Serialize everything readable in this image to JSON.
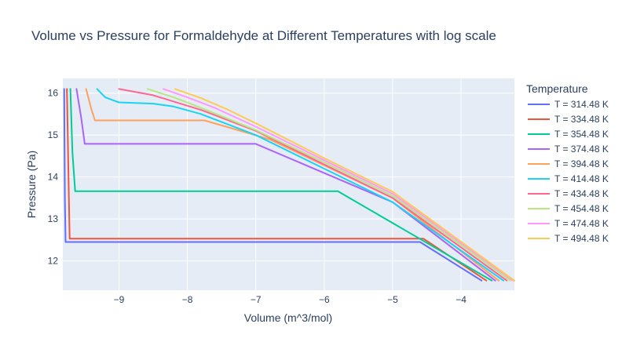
{
  "chart_data": {
    "type": "line",
    "title": "Volume vs Pressure for Formaldehyde at Different Temperatures with log scale",
    "xlabel": "Volume (m^3/mol)",
    "ylabel": "Pressure (Pa)",
    "xlim": [
      -9.82,
      -3.22
    ],
    "ylim": [
      11.3,
      16.35
    ],
    "xticks": [
      -9,
      -8,
      -7,
      -6,
      -5,
      -4
    ],
    "yticks": [
      12,
      13,
      14,
      15,
      16
    ],
    "xtick_labels": [
      "−9",
      "−8",
      "−7",
      "−6",
      "−5",
      "−4"
    ],
    "ytick_labels": [
      "12",
      "13",
      "14",
      "15",
      "16"
    ],
    "grid": true,
    "legend": {
      "title": "Temperature",
      "placement": "right"
    },
    "series": [
      {
        "name": "T = 314.48 K",
        "color": "#636efa",
        "points": [
          [
            -9.8,
            16.1
          ],
          [
            -9.79,
            13.5
          ],
          [
            -9.78,
            12.45
          ],
          [
            -4.6,
            12.45
          ],
          [
            -3.7,
            11.53
          ]
        ]
      },
      {
        "name": "T = 334.48 K",
        "color": "#EF553B",
        "points": [
          [
            -9.76,
            16.1
          ],
          [
            -9.73,
            13.4
          ],
          [
            -9.72,
            12.53
          ],
          [
            -4.55,
            12.53
          ],
          [
            -3.63,
            11.53
          ]
        ]
      },
      {
        "name": "T = 354.48 K",
        "color": "#00cc96",
        "points": [
          [
            -9.71,
            16.1
          ],
          [
            -9.68,
            14.6
          ],
          [
            -9.64,
            13.66
          ],
          [
            -5.8,
            13.66
          ],
          [
            -3.55,
            11.53
          ]
        ]
      },
      {
        "name": "T = 374.48 K",
        "color": "#ab63fa",
        "points": [
          [
            -9.62,
            16.1
          ],
          [
            -9.55,
            15.4
          ],
          [
            -9.5,
            14.79
          ],
          [
            -7.0,
            14.79
          ],
          [
            -5.0,
            13.4
          ],
          [
            -3.5,
            11.53
          ]
        ]
      },
      {
        "name": "T = 394.48 K",
        "color": "#FFA15A",
        "points": [
          [
            -9.48,
            16.1
          ],
          [
            -9.4,
            15.6
          ],
          [
            -9.35,
            15.35
          ],
          [
            -7.75,
            15.35
          ],
          [
            -6.8,
            14.9
          ],
          [
            -5.0,
            13.5
          ],
          [
            -3.45,
            11.53
          ]
        ]
      },
      {
        "name": "T = 414.48 K",
        "color": "#19d3f3",
        "points": [
          [
            -9.32,
            16.1
          ],
          [
            -9.2,
            15.9
          ],
          [
            -9.0,
            15.78
          ],
          [
            -8.5,
            15.75
          ],
          [
            -8.2,
            15.68
          ],
          [
            -7.8,
            15.5
          ],
          [
            -7.0,
            15.0
          ],
          [
            -6.0,
            14.2
          ],
          [
            -5.0,
            13.4
          ],
          [
            -3.38,
            11.53
          ]
        ]
      },
      {
        "name": "T = 434.48 K",
        "color": "#FF6692",
        "points": [
          [
            -9.0,
            16.1
          ],
          [
            -8.5,
            15.95
          ],
          [
            -8.2,
            15.8
          ],
          [
            -7.8,
            15.6
          ],
          [
            -7.0,
            15.1
          ],
          [
            -6.0,
            14.3
          ],
          [
            -5.0,
            13.5
          ],
          [
            -3.33,
            11.53
          ]
        ]
      },
      {
        "name": "T = 454.48 K",
        "color": "#B6E880",
        "points": [
          [
            -8.58,
            16.1
          ],
          [
            -8.2,
            15.9
          ],
          [
            -7.8,
            15.65
          ],
          [
            -7.0,
            15.12
          ],
          [
            -6.0,
            14.35
          ],
          [
            -5.0,
            13.55
          ],
          [
            -3.28,
            11.53
          ]
        ]
      },
      {
        "name": "T = 474.48 K",
        "color": "#FF97FF",
        "points": [
          [
            -8.35,
            16.1
          ],
          [
            -8.0,
            15.9
          ],
          [
            -7.6,
            15.65
          ],
          [
            -7.0,
            15.2
          ],
          [
            -6.0,
            14.4
          ],
          [
            -5.0,
            13.6
          ],
          [
            -3.24,
            11.53
          ]
        ]
      },
      {
        "name": "T = 494.48 K",
        "color": "#FECB52",
        "points": [
          [
            -8.18,
            16.1
          ],
          [
            -7.8,
            15.88
          ],
          [
            -7.4,
            15.6
          ],
          [
            -7.0,
            15.28
          ],
          [
            -6.0,
            14.45
          ],
          [
            -5.0,
            13.65
          ],
          [
            -3.22,
            11.53
          ]
        ]
      }
    ]
  }
}
